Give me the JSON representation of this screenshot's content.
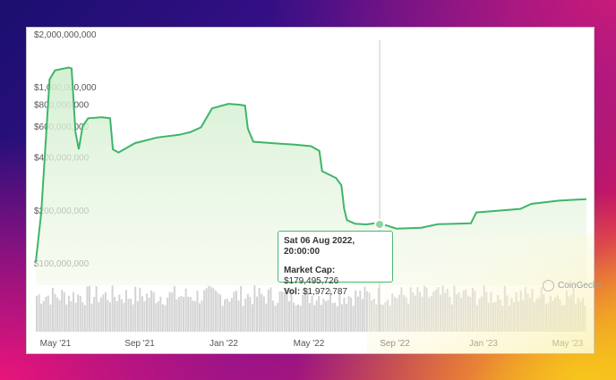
{
  "chart_data": {
    "type": "area",
    "y_scale": "log",
    "y_ticks": [
      "$2,000,000,000",
      "$1,000,000,000",
      "$800,000,000",
      "$600,000,000",
      "$400,000,000",
      "$200,000,000",
      "$100,000,000"
    ],
    "y_tick_values": [
      2000000000,
      1000000000,
      800000000,
      600000000,
      400000000,
      200000000,
      100000000
    ],
    "x_ticks": [
      "May '21",
      "Sep '21",
      "Jan '22",
      "May '22",
      "Sep '22",
      "Jan '23",
      "May '23"
    ],
    "ylim": [
      100000000,
      2000000000
    ],
    "series": [
      {
        "values": [
          [
            0,
            110000000
          ],
          [
            0.01,
            210000000
          ],
          [
            0.025,
            1200000000
          ],
          [
            0.035,
            1350000000
          ],
          [
            0.06,
            1400000000
          ],
          [
            0.065,
            1380000000
          ],
          [
            0.072,
            600000000
          ],
          [
            0.078,
            480000000
          ],
          [
            0.085,
            650000000
          ],
          [
            0.095,
            720000000
          ],
          [
            0.12,
            730000000
          ],
          [
            0.135,
            720000000
          ],
          [
            0.14,
            480000000
          ],
          [
            0.15,
            460000000
          ],
          [
            0.18,
            520000000
          ],
          [
            0.22,
            560000000
          ],
          [
            0.26,
            580000000
          ],
          [
            0.28,
            600000000
          ],
          [
            0.3,
            640000000
          ],
          [
            0.32,
            820000000
          ],
          [
            0.35,
            870000000
          ],
          [
            0.37,
            860000000
          ],
          [
            0.38,
            850000000
          ],
          [
            0.385,
            630000000
          ],
          [
            0.395,
            530000000
          ],
          [
            0.43,
            520000000
          ],
          [
            0.47,
            510000000
          ],
          [
            0.5,
            500000000
          ],
          [
            0.515,
            470000000
          ],
          [
            0.52,
            360000000
          ],
          [
            0.545,
            330000000
          ],
          [
            0.555,
            300000000
          ],
          [
            0.56,
            220000000
          ],
          [
            0.565,
            190000000
          ],
          [
            0.58,
            181000000
          ],
          [
            0.6,
            179495726
          ],
          [
            0.62,
            183000000
          ],
          [
            0.64,
            176000000
          ],
          [
            0.655,
            170000000
          ],
          [
            0.7,
            172000000
          ],
          [
            0.73,
            180000000
          ],
          [
            0.79,
            182000000
          ],
          [
            0.8,
            210000000
          ],
          [
            0.84,
            215000000
          ],
          [
            0.88,
            220000000
          ],
          [
            0.9,
            235000000
          ],
          [
            0.95,
            245000000
          ],
          [
            1.0,
            250000000
          ]
        ]
      }
    ],
    "volume_bars": 240,
    "hover": {
      "x_fraction": 0.6,
      "date": "Sat 06 Aug 2022, 20:00:00",
      "market_cap_label": "Market Cap:",
      "market_cap": "$179,495,726",
      "vol_label": "Vol:",
      "vol": "$1,972,787"
    },
    "grid": false,
    "line_color": "#3fb56a",
    "fill_color": "#dff3e2"
  },
  "brand": {
    "name": "CoinGecko"
  }
}
